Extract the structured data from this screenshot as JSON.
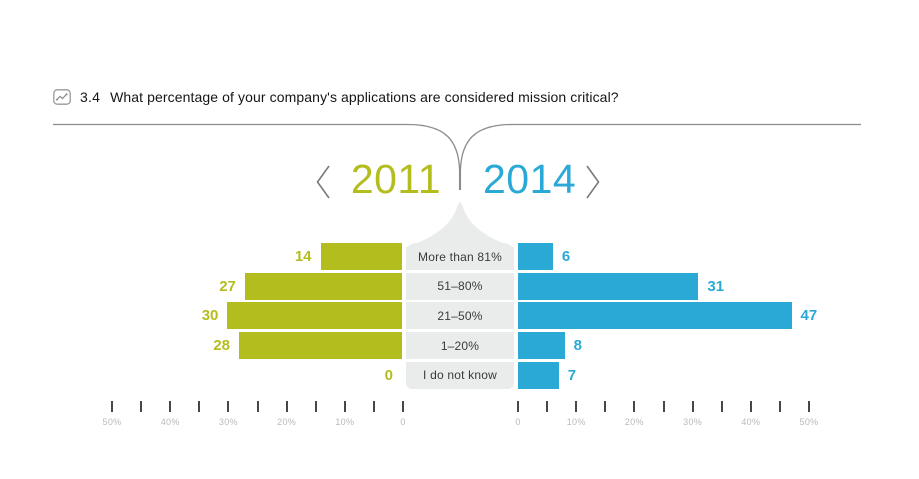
{
  "header": {
    "number": "3.4",
    "question": "What percentage of your company's applications are considered mission critical?",
    "icon": "line-chart-icon"
  },
  "year_nav": {
    "left_year": "2011",
    "right_year": "2014",
    "prev_icon": "chevron-left-icon",
    "next_icon": "chevron-right-icon"
  },
  "colors": {
    "year_2011": "#b4bd1e",
    "year_2014": "#2aa9d6",
    "category_bg": "#e9eceb",
    "rule": "#8c8c8c",
    "tick": "#474747",
    "tick_label": "#b9b9b9",
    "chevron": "#7a7a7a"
  },
  "chart_data": {
    "type": "bar",
    "orientation": "horizontal-diverging",
    "title": "3.4 What percentage of your company's applications are considered mission critical?",
    "categories": [
      "More than 81%",
      "51–80%",
      "21–50%",
      "1–20%",
      "I do not know"
    ],
    "series": [
      {
        "name": "2011",
        "color": "#b4bd1e",
        "side": "left",
        "values": [
          14,
          27,
          30,
          28,
          0
        ]
      },
      {
        "name": "2014",
        "color": "#2aa9d6",
        "side": "right",
        "values": [
          6,
          31,
          47,
          8,
          7
        ]
      }
    ],
    "axis": {
      "min": 0,
      "max": 50,
      "tick_step": 5,
      "label_step": 10,
      "left_labels": [
        "50%",
        "40%",
        "30%",
        "20%",
        "10%",
        "0"
      ],
      "right_labels": [
        "0",
        "10%",
        "20%",
        "30%",
        "40%",
        "50%"
      ]
    },
    "legend_position": "top-center-years",
    "grid": false,
    "unit": "percent of respondents"
  }
}
